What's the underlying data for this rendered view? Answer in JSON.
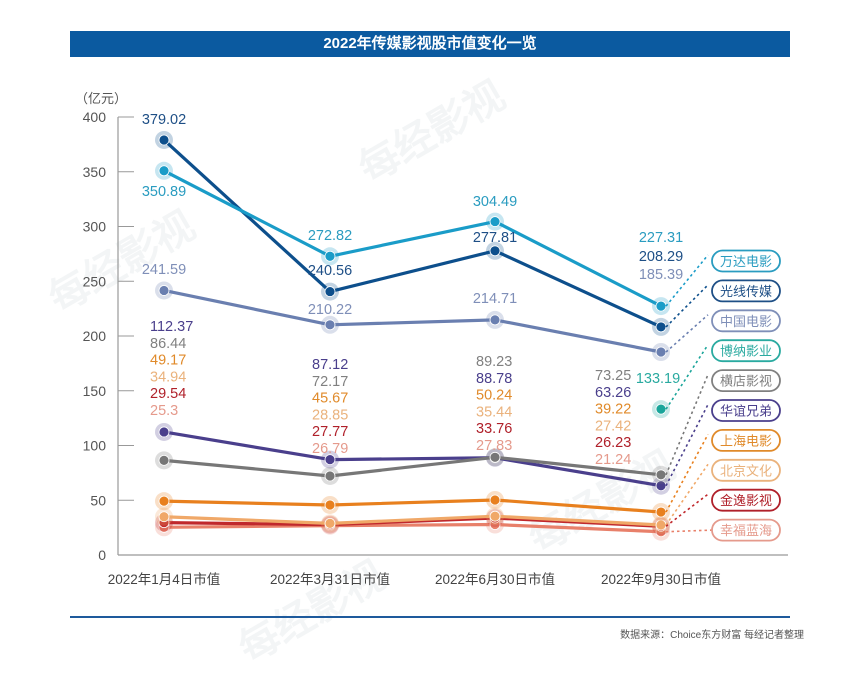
{
  "title": "2022年传媒影视股市值变化一览",
  "unit_label": "（亿元）",
  "source": "数据来源：Choice东方财富 每经记者整理",
  "watermark": "每经影视",
  "chart_data": {
    "type": "line",
    "title": "2022年传媒影视股市值变化一览",
    "xlabel": "",
    "ylabel": "（亿元）",
    "ylim": [
      0,
      400
    ],
    "yticks": [
      0,
      50,
      100,
      150,
      200,
      250,
      300,
      350,
      400
    ],
    "categories": [
      "2022年1月4日市值",
      "2022年3月31日市值",
      "2022年6月30日市值",
      "2022年9月30日市值"
    ],
    "grid": false,
    "legend": "right",
    "series": [
      {
        "name": "万达电影",
        "color": "#1a9cc8",
        "values": [
          350.89,
          272.82,
          304.49,
          227.31
        ]
      },
      {
        "name": "光线传媒",
        "color": "#0d4f8c",
        "values": [
          379.02,
          240.56,
          277.81,
          208.29
        ]
      },
      {
        "name": "中国电影",
        "color": "#6a7fb0",
        "values": [
          241.59,
          210.22,
          214.71,
          185.39
        ]
      },
      {
        "name": "博纳影业",
        "color": "#1aa59a",
        "values": [
          null,
          null,
          null,
          133.19
        ]
      },
      {
        "name": "横店影视",
        "color": "#777777",
        "values": [
          86.44,
          72.17,
          89.23,
          73.25
        ]
      },
      {
        "name": "华谊兄弟",
        "color": "#4a3f8c",
        "values": [
          112.37,
          87.12,
          88.78,
          63.26
        ]
      },
      {
        "name": "上海电影",
        "color": "#e8801e",
        "values": [
          49.17,
          45.67,
          50.24,
          39.22
        ]
      },
      {
        "name": "北京文化",
        "color": "#f0a868",
        "values": [
          34.94,
          28.85,
          35.44,
          27.42
        ]
      },
      {
        "name": "金逸影视",
        "color": "#c0282c",
        "values": [
          29.54,
          27.77,
          33.76,
          26.23
        ]
      },
      {
        "name": "幸福蓝海",
        "color": "#e8806a",
        "values": [
          25.3,
          26.79,
          27.83,
          21.24
        ]
      }
    ],
    "data_labels": {
      "万达电影": [
        "350.89",
        "272.82",
        "304.49",
        "227.31"
      ],
      "光线传媒": [
        "379.02",
        "240.56",
        "277.81",
        "208.29"
      ],
      "中国电影": [
        "241.59",
        "210.22",
        "214.71",
        "185.39"
      ],
      "博纳影业": [
        null,
        null,
        null,
        "133.19"
      ],
      "横店影视": [
        "86.44",
        "72.17",
        "89.23",
        "73.25"
      ],
      "华谊兄弟": [
        "112.37",
        "87.12",
        "88.78",
        "63.26"
      ],
      "上海电影": [
        "49.17",
        "45.67",
        "50.24",
        "39.22"
      ],
      "北京文化": [
        "34.94",
        "28.85",
        "35.44",
        "27.42"
      ],
      "金逸影视": [
        "29.54",
        "27.77",
        "33.76",
        "26.23"
      ],
      "幸福蓝海": [
        "25.3",
        "26.79",
        "27.83",
        "21.24"
      ]
    },
    "label_colors": {
      "万达电影": "#2a9cc0",
      "光线传媒": "#1e4f86",
      "中国电影": "#7f8fb8",
      "博纳影业": "#2aaaa0",
      "横店影视": "#808080",
      "华谊兄弟": "#4a3f8c",
      "上海电影": "#e08a2a",
      "北京文化": "#eab27c",
      "金逸影视": "#b0202a",
      "幸福蓝海": "#e59a8c"
    }
  }
}
